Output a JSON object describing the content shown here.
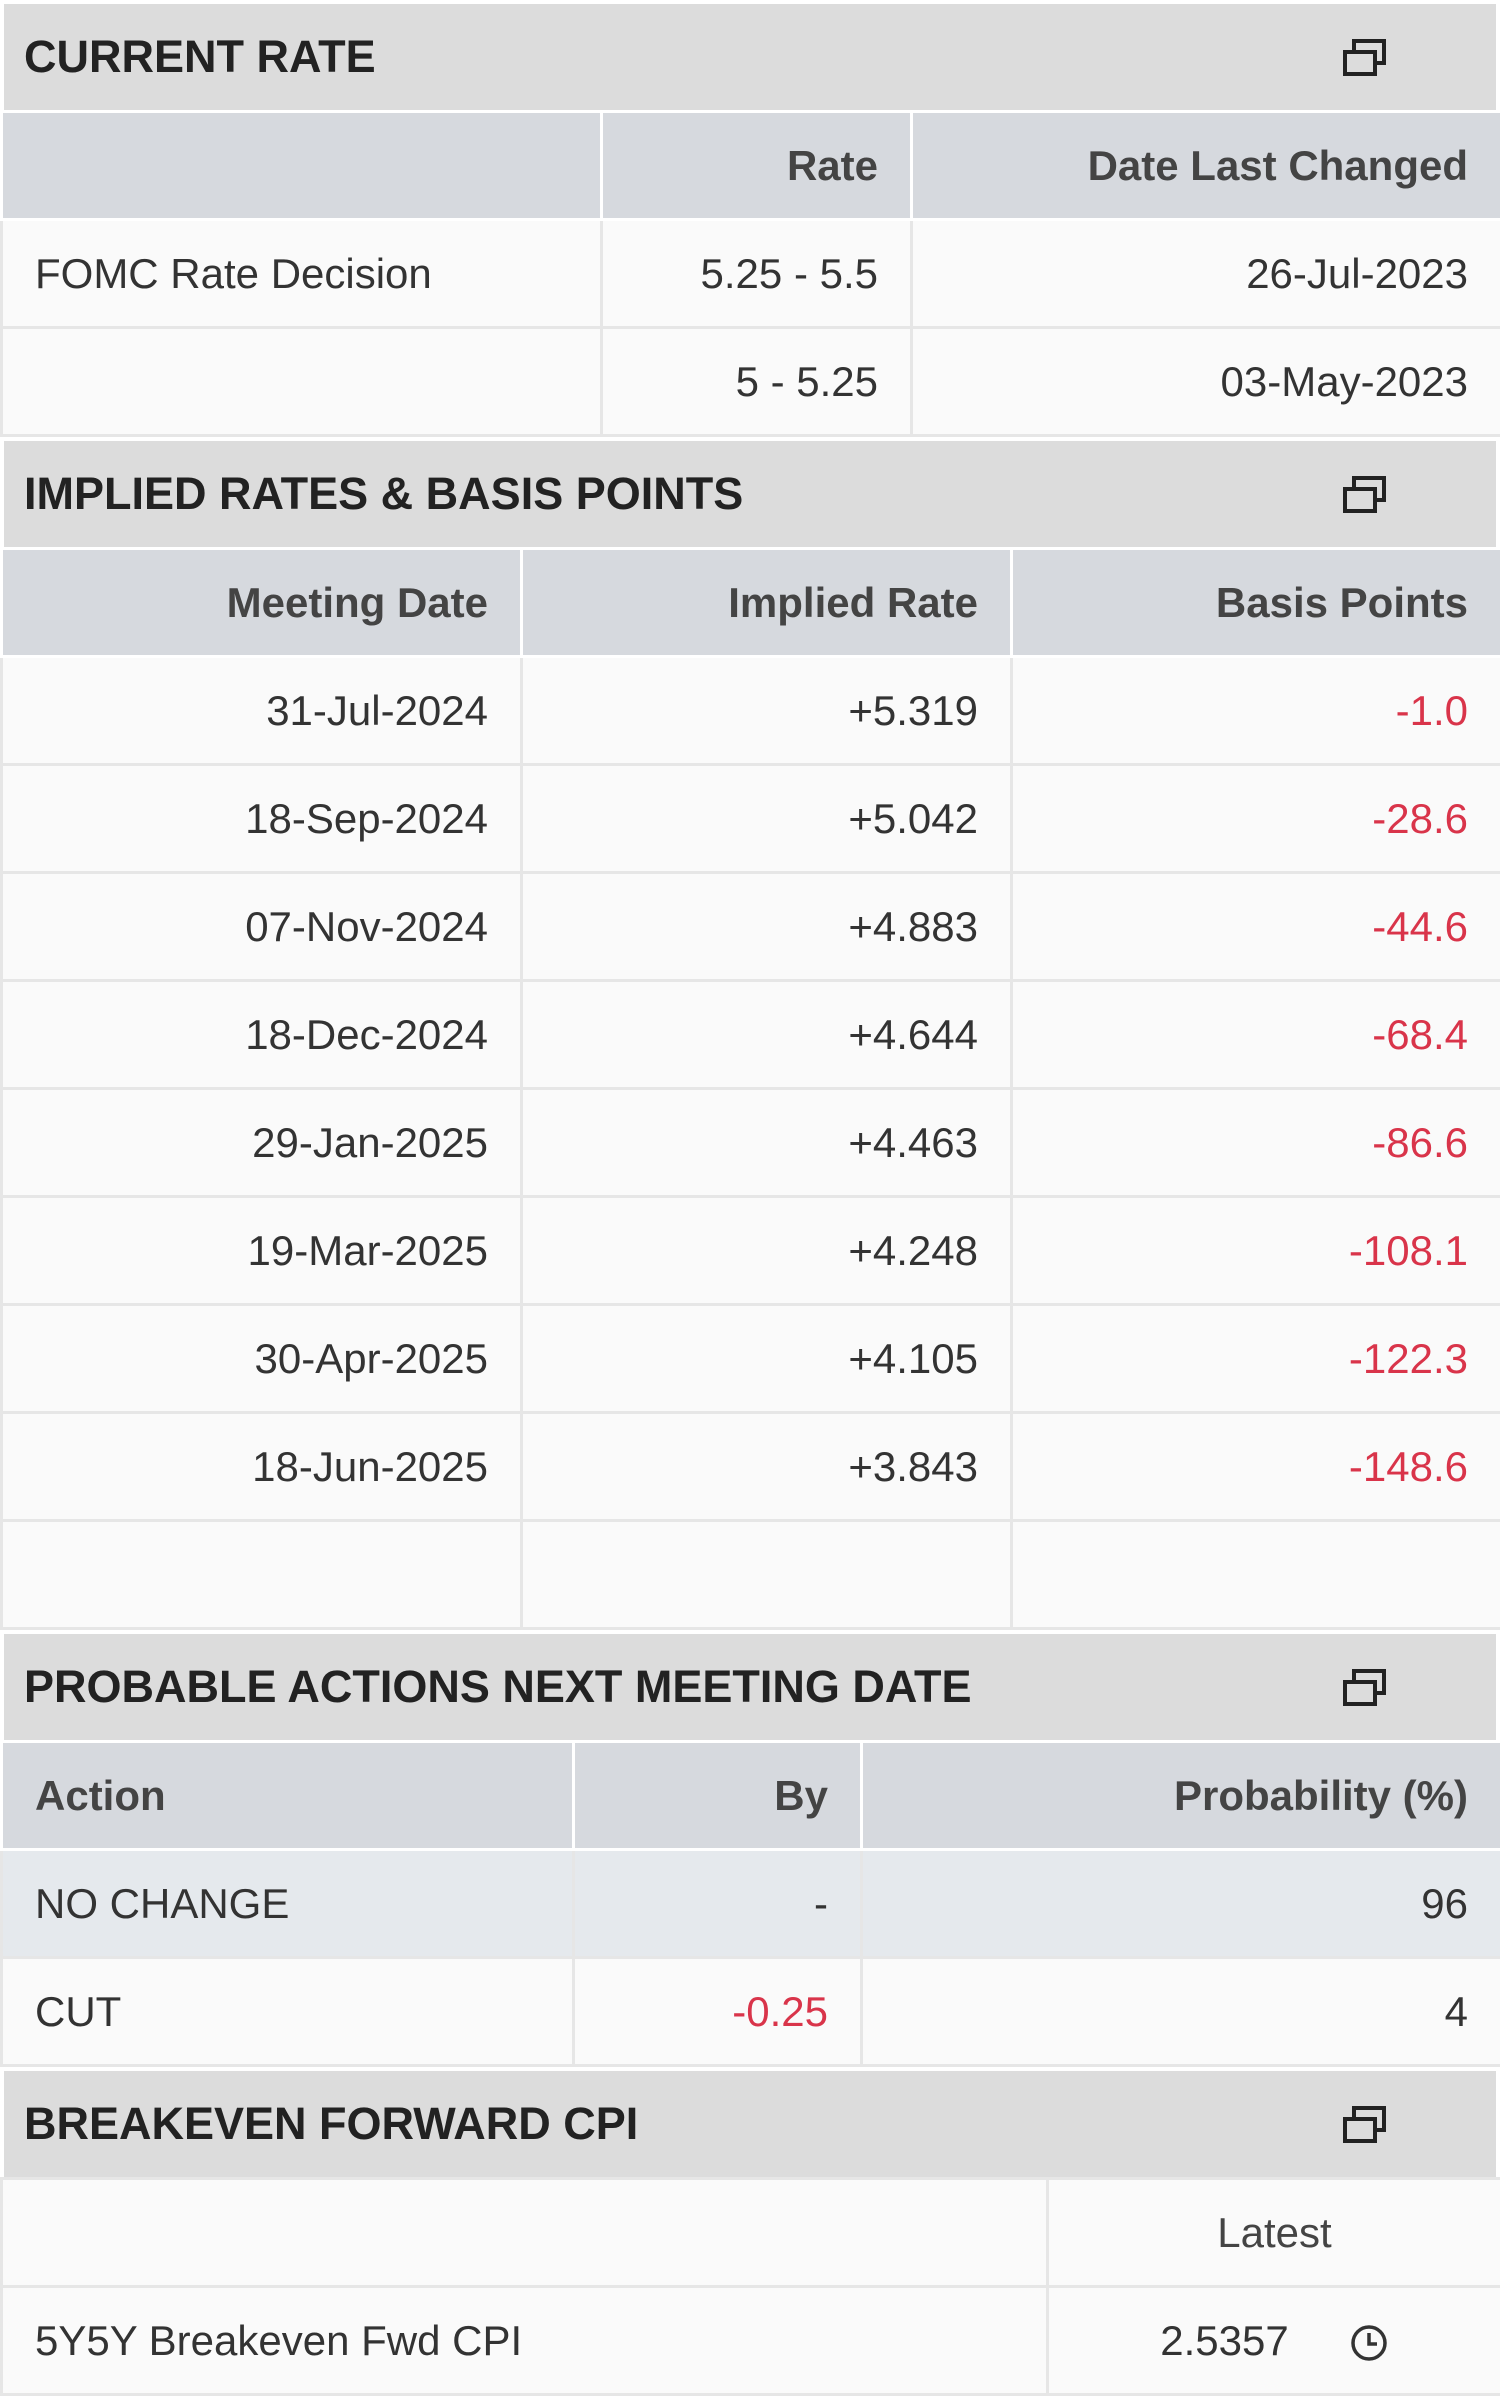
{
  "sections": [
    {
      "title": "CURRENT RATE",
      "columns": [
        null,
        "Rate",
        "Date Last Changed"
      ],
      "rows": [
        [
          "FOMC Rate Decision",
          "5.25 - 5.5",
          "26-Jul-2023"
        ],
        [
          null,
          "5 - 5.25",
          "03-May-2023"
        ]
      ]
    },
    {
      "title": "IMPLIED RATES & BASIS POINTS",
      "columns": [
        "Meeting Date",
        "Implied Rate",
        "Basis Points"
      ],
      "rows": [
        [
          "31-Jul-2024",
          "+5.319",
          "-1.0"
        ],
        [
          "18-Sep-2024",
          "+5.042",
          "-28.6"
        ],
        [
          "07-Nov-2024",
          "+4.883",
          "-44.6"
        ],
        [
          "18-Dec-2024",
          "+4.644",
          "-68.4"
        ],
        [
          "29-Jan-2025",
          "+4.463",
          "-86.6"
        ],
        [
          "19-Mar-2025",
          "+4.248",
          "-108.1"
        ],
        [
          "30-Apr-2025",
          "+4.105",
          "-122.3"
        ],
        [
          "18-Jun-2025",
          "+3.843",
          "-148.6"
        ],
        [
          null,
          null,
          null
        ]
      ]
    },
    {
      "title": "PROBABLE ACTIONS NEXT MEETING DATE",
      "columns": [
        "Action",
        "By",
        "Probability (%)"
      ],
      "rows": [
        [
          "NO CHANGE",
          "-",
          "96"
        ],
        [
          "CUT",
          "-0.25",
          "4"
        ]
      ]
    },
    {
      "title": "BREAKEVEN FORWARD CPI",
      "columns": [
        null,
        "Latest"
      ],
      "rows": [
        [
          "5Y5Y Breakeven Fwd CPI",
          "2.5357"
        ]
      ]
    }
  ]
}
